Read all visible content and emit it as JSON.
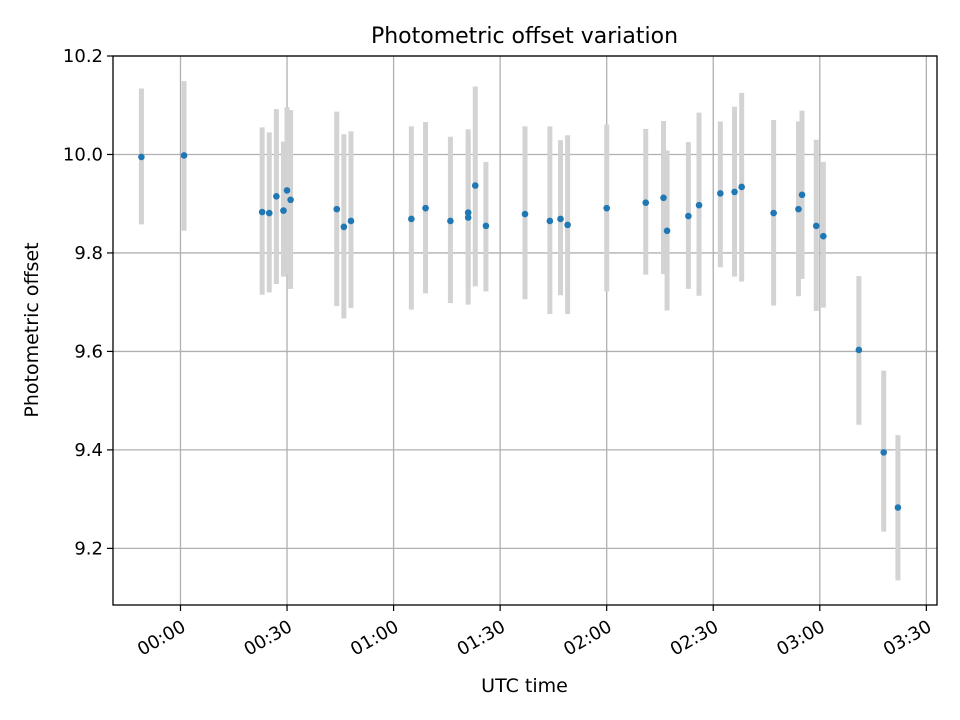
{
  "chart_data": {
    "type": "scatter",
    "title": "Photometric offset variation",
    "xlabel": "UTC time",
    "ylabel": "Photometric offset",
    "x_unit": "UTC clock time (HH:MM)",
    "xlim": [
      "23:41",
      "03:33"
    ],
    "ylim": [
      9.085,
      10.2
    ],
    "xticks": [
      "00:00",
      "00:30",
      "01:00",
      "01:30",
      "02:00",
      "02:30",
      "03:00",
      "03:30"
    ],
    "yticks": [
      9.2,
      9.4,
      9.6,
      9.8,
      10.0,
      10.2
    ],
    "ytick_labels": [
      "9.2",
      "9.4",
      "9.6",
      "9.8",
      "10.0",
      "10.2"
    ],
    "grid": true,
    "colors": {
      "point": "#1f77b4",
      "errorbar": "#d3d3d3",
      "grid": "#b0b0b0"
    },
    "series": [
      {
        "x": [
          "23:49",
          "00:01",
          "00:23",
          "00:25",
          "00:27",
          "00:29",
          "00:30",
          "00:31",
          "00:44",
          "00:46",
          "00:48",
          "01:05",
          "01:09",
          "01:16",
          "01:21",
          "01:21",
          "01:23",
          "01:26",
          "01:37",
          "01:44",
          "01:47",
          "01:49",
          "02:00",
          "02:11",
          "02:16",
          "02:17",
          "02:23",
          "02:26",
          "02:32",
          "02:36",
          "02:38",
          "02:47",
          "02:54",
          "02:55",
          "02:59",
          "03:01",
          "03:11",
          "03:18",
          "03:22"
        ],
        "y": [
          9.995,
          9.998,
          9.883,
          9.881,
          9.915,
          9.886,
          9.927,
          9.908,
          9.889,
          9.853,
          9.865,
          9.869,
          9.891,
          9.865,
          9.882,
          9.872,
          9.937,
          9.855,
          9.879,
          9.865,
          9.869,
          9.857,
          9.891,
          9.902,
          9.912,
          9.845,
          9.875,
          9.897,
          9.921,
          9.924,
          9.934,
          9.881,
          9.889,
          9.918,
          9.855,
          9.834,
          9.603,
          9.395,
          9.283
        ],
        "err_low": [
          9.858,
          9.845,
          9.715,
          9.72,
          9.737,
          9.752,
          9.757,
          9.727,
          9.692,
          9.667,
          9.688,
          9.685,
          9.718,
          9.698,
          9.73,
          9.695,
          9.732,
          9.722,
          9.706,
          9.676,
          9.714,
          9.676,
          9.722,
          9.756,
          9.757,
          9.683,
          9.727,
          9.713,
          9.771,
          9.752,
          9.742,
          9.693,
          9.712,
          9.747,
          9.682,
          9.689,
          9.451,
          9.234,
          9.135
        ],
        "err_high": [
          10.134,
          10.149,
          10.055,
          10.045,
          10.092,
          10.026,
          10.096,
          10.09,
          10.087,
          10.041,
          10.047,
          10.057,
          10.066,
          10.036,
          10.036,
          10.051,
          10.138,
          9.985,
          10.057,
          10.057,
          10.029,
          10.039,
          10.061,
          10.052,
          10.068,
          10.008,
          10.025,
          10.085,
          10.067,
          10.097,
          10.125,
          10.07,
          10.067,
          10.089,
          10.03,
          9.985,
          9.753,
          9.561,
          9.43
        ]
      }
    ]
  }
}
